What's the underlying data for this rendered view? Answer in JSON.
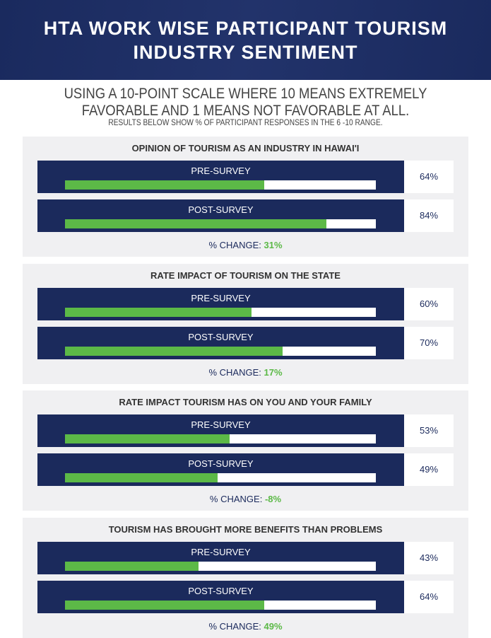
{
  "header": {
    "title_line1": "HTA WORK WISE PARTICIPANT TOURISM",
    "title_line2": "INDUSTRY SENTIMENT"
  },
  "subtitle": {
    "line1": "USING A 10-POINT SCALE WHERE 10 MEANS EXTREMELY",
    "line2": "FAVORABLE AND 1 MEANS NOT FAVORABLE AT ALL.",
    "line3": "RESULTS BELOW SHOW % OF PARTICIPANT RESPONSES IN THE 6 -10 RANGE."
  },
  "colors": {
    "navy": "#1b2a5c",
    "green": "#5cb947",
    "panel": "#f0f0f2"
  },
  "chart_data": {
    "type": "bar",
    "series_names": [
      "PRE-SURVEY",
      "POST-SURVEY"
    ],
    "change_label": "% CHANGE:",
    "xlim": [
      0,
      100
    ],
    "panels": [
      {
        "title": "OPINION OF TOURISM AS AN INDUSTRY IN HAWAI'I",
        "pre": 64,
        "post": 84,
        "pre_label": "64%",
        "post_label": "84%",
        "change": "31%"
      },
      {
        "title": "RATE IMPACT OF TOURISM ON THE STATE",
        "pre": 60,
        "post": 70,
        "pre_label": "60%",
        "post_label": "70%",
        "change": "17%"
      },
      {
        "title": "RATE IMPACT TOURISM HAS ON YOU AND YOUR FAMILY",
        "pre": 53,
        "post": 49,
        "pre_label": "53%",
        "post_label": "49%",
        "change": "-8%"
      },
      {
        "title": "TOURISM HAS BROUGHT MORE BENEFITS THAN PROBLEMS",
        "pre": 43,
        "post": 64,
        "pre_label": "43%",
        "post_label": "64%",
        "change": "49%"
      }
    ]
  }
}
